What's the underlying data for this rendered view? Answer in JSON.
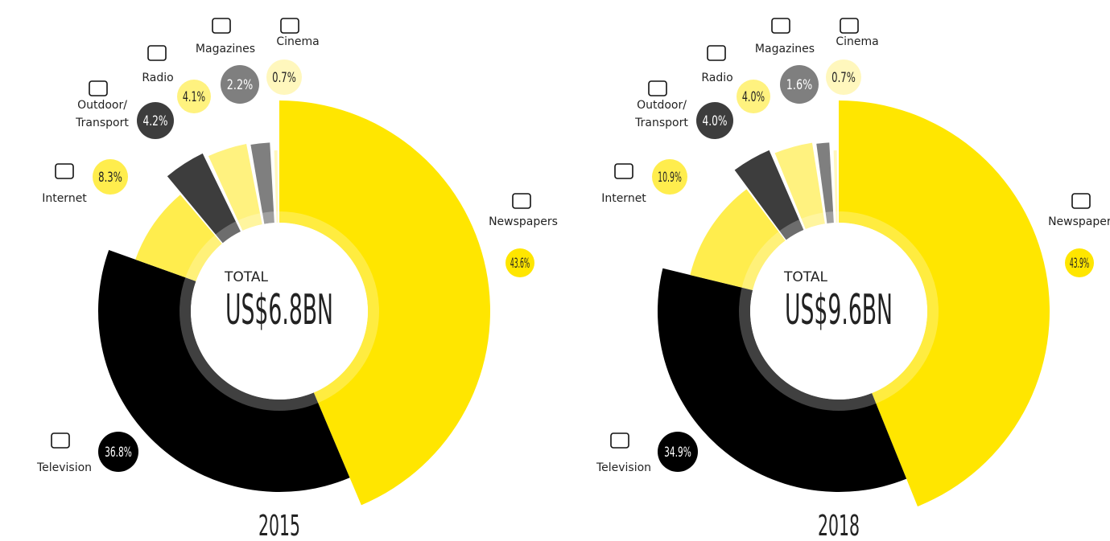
{
  "chart_data": [
    {
      "type": "pie",
      "title": "2015",
      "center_label": "TOTAL",
      "total": "US$6.8BN",
      "categories": [
        "Newspapers",
        "Television",
        "Internet",
        "Outdoor/Transport",
        "Radio",
        "Magazines",
        "Cinema"
      ],
      "values": [
        43.6,
        36.8,
        8.3,
        4.2,
        4.1,
        2.2,
        0.7
      ],
      "value_labels": [
        "43.6%",
        "36.8%",
        "8.3%",
        "4.2%",
        "4.1%",
        "2.2%",
        "0.7%"
      ],
      "colors": [
        "#ffe600",
        "#000000",
        "#ffed4d",
        "#3d3d3d",
        "#fff27f",
        "#7f7f7f",
        "#fff7bd"
      ]
    },
    {
      "type": "pie",
      "title": "2018",
      "center_label": "TOTAL",
      "total": "US$9.6BN",
      "categories": [
        "Newspapers",
        "Television",
        "Internet",
        "Outdoor/Transport",
        "Radio",
        "Magazines",
        "Cinema"
      ],
      "values": [
        43.9,
        34.9,
        10.9,
        4.0,
        4.0,
        1.6,
        0.7
      ],
      "value_labels": [
        "43.9%",
        "34.9%",
        "10.9%",
        "4.0%",
        "4.0%",
        "1.6%",
        "0.7%"
      ],
      "colors": [
        "#ffe600",
        "#000000",
        "#ffed4d",
        "#3d3d3d",
        "#fff27f",
        "#7f7f7f",
        "#fff7bd"
      ]
    }
  ]
}
